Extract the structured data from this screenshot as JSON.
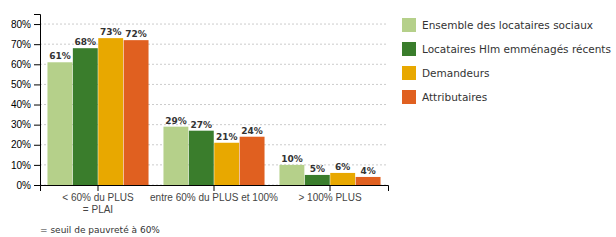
{
  "chart_data": {
    "type": "bar",
    "categories": [
      "< 60% du PLUS\n= PLAI",
      "entre 60% du PLUS et 100%",
      "> 100% PLUS"
    ],
    "series": [
      {
        "name": "Ensemble des locataires sociaux",
        "color": "#b5d08a",
        "values": [
          61,
          29,
          10
        ],
        "value_labels": [
          "61%",
          "29%",
          "10%"
        ]
      },
      {
        "name": "Locataires Hlm emménagés récents",
        "color": "#3a7d2c",
        "values": [
          68,
          27,
          5
        ],
        "value_labels": [
          "68%",
          "27%",
          "5%"
        ]
      },
      {
        "name": "Demandeurs",
        "color": "#e8a800",
        "values": [
          73,
          21,
          6
        ],
        "value_labels": [
          "73%",
          "21%",
          "6%"
        ]
      },
      {
        "name": "Attributaires",
        "color": "#e06020",
        "values": [
          72,
          24,
          4
        ],
        "value_labels": [
          "72%",
          "24%",
          "4%"
        ]
      }
    ],
    "ylim": [
      0,
      85
    ],
    "yticks": [
      {
        "value": 0,
        "label": "0%"
      },
      {
        "value": 10,
        "label": "10%"
      },
      {
        "value": 20,
        "label": "20%"
      },
      {
        "value": 30,
        "label": "30%"
      },
      {
        "value": 40,
        "label": "40%"
      },
      {
        "value": 50,
        "label": "50%"
      },
      {
        "value": 60,
        "label": "60%"
      },
      {
        "value": 70,
        "label": "70%"
      },
      {
        "value": 80,
        "label": "80%"
      }
    ],
    "grid": true,
    "legend": "right",
    "data_labels": true,
    "annotations": [
      "= seuil de pauvreté à 60%"
    ]
  }
}
